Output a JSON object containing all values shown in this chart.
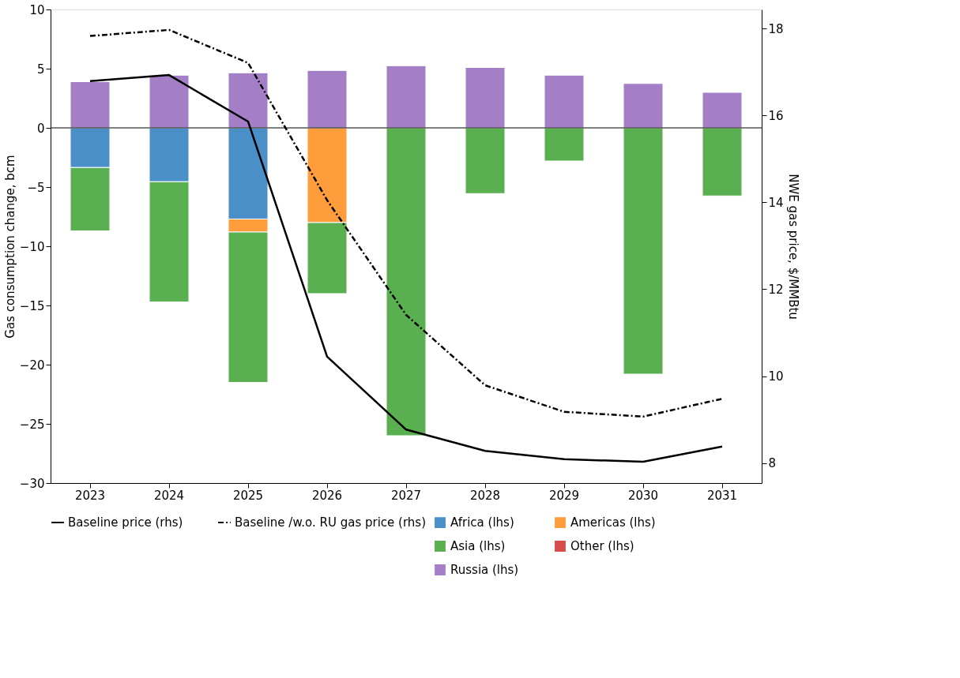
{
  "chart_data": {
    "type": "bar",
    "stacked": true,
    "ylabel": "Gas consumption change, bcm",
    "y2label": "NWE gas price, $/MMBtu",
    "categories": [
      "2023",
      "2024",
      "2025",
      "2026",
      "2027",
      "2028",
      "2029",
      "2030",
      "2031"
    ],
    "series": [
      {
        "name": "Africa (lhs)",
        "color": "#4a8fc7",
        "values": [
          -3.35,
          -4.55,
          -7.7,
          null,
          null,
          null,
          null,
          null,
          null
        ]
      },
      {
        "name": "Americas (lhs)",
        "color": "#ff9c3c",
        "values": [
          null,
          null,
          -1.1,
          -8.0,
          null,
          null,
          null,
          null,
          null
        ]
      },
      {
        "name": "Asia (lhs)",
        "color": "#5aaf50",
        "values": [
          -5.35,
          -10.15,
          -12.7,
          -6.0,
          -26.0,
          -5.55,
          -2.8,
          -20.8,
          -5.75
        ]
      },
      {
        "name": "Other (lhs)",
        "color": "#d84b4b",
        "values": [
          null,
          null,
          null,
          null,
          null,
          null,
          null,
          null,
          null
        ]
      },
      {
        "name": "Russia (lhs)",
        "color": "#a47fc8",
        "values": [
          3.9,
          4.45,
          4.65,
          4.85,
          5.25,
          5.1,
          4.45,
          3.75,
          3.0
        ]
      },
      {
        "name": "Baseline price (rhs)",
        "type": "line",
        "axis": "y2",
        "color": "#000000",
        "line_style": "solid",
        "values": [
          16.79,
          16.93,
          15.86,
          10.45,
          8.77,
          8.28,
          8.09,
          8.03,
          8.38
        ]
      },
      {
        "name": "Baseline /w.o. RU gas price (rhs)",
        "type": "line",
        "axis": "y2",
        "color": "#000000",
        "line_style": "dashdot",
        "values": [
          17.83,
          17.97,
          17.21,
          14.05,
          11.41,
          9.79,
          9.18,
          9.07,
          9.48
        ]
      }
    ],
    "ylim": [
      -30,
      10
    ],
    "yticks": [
      -30,
      -25,
      -20,
      -15,
      -10,
      -5,
      0,
      5,
      10
    ],
    "y2lim": [
      7.54,
      18.44
    ],
    "y2ticks": [
      8,
      10,
      12,
      14,
      16,
      18
    ],
    "ref_lines": [
      {
        "axis": "y",
        "value": 0,
        "color": "#000000"
      }
    ],
    "grid": false,
    "legend": "bottom"
  }
}
